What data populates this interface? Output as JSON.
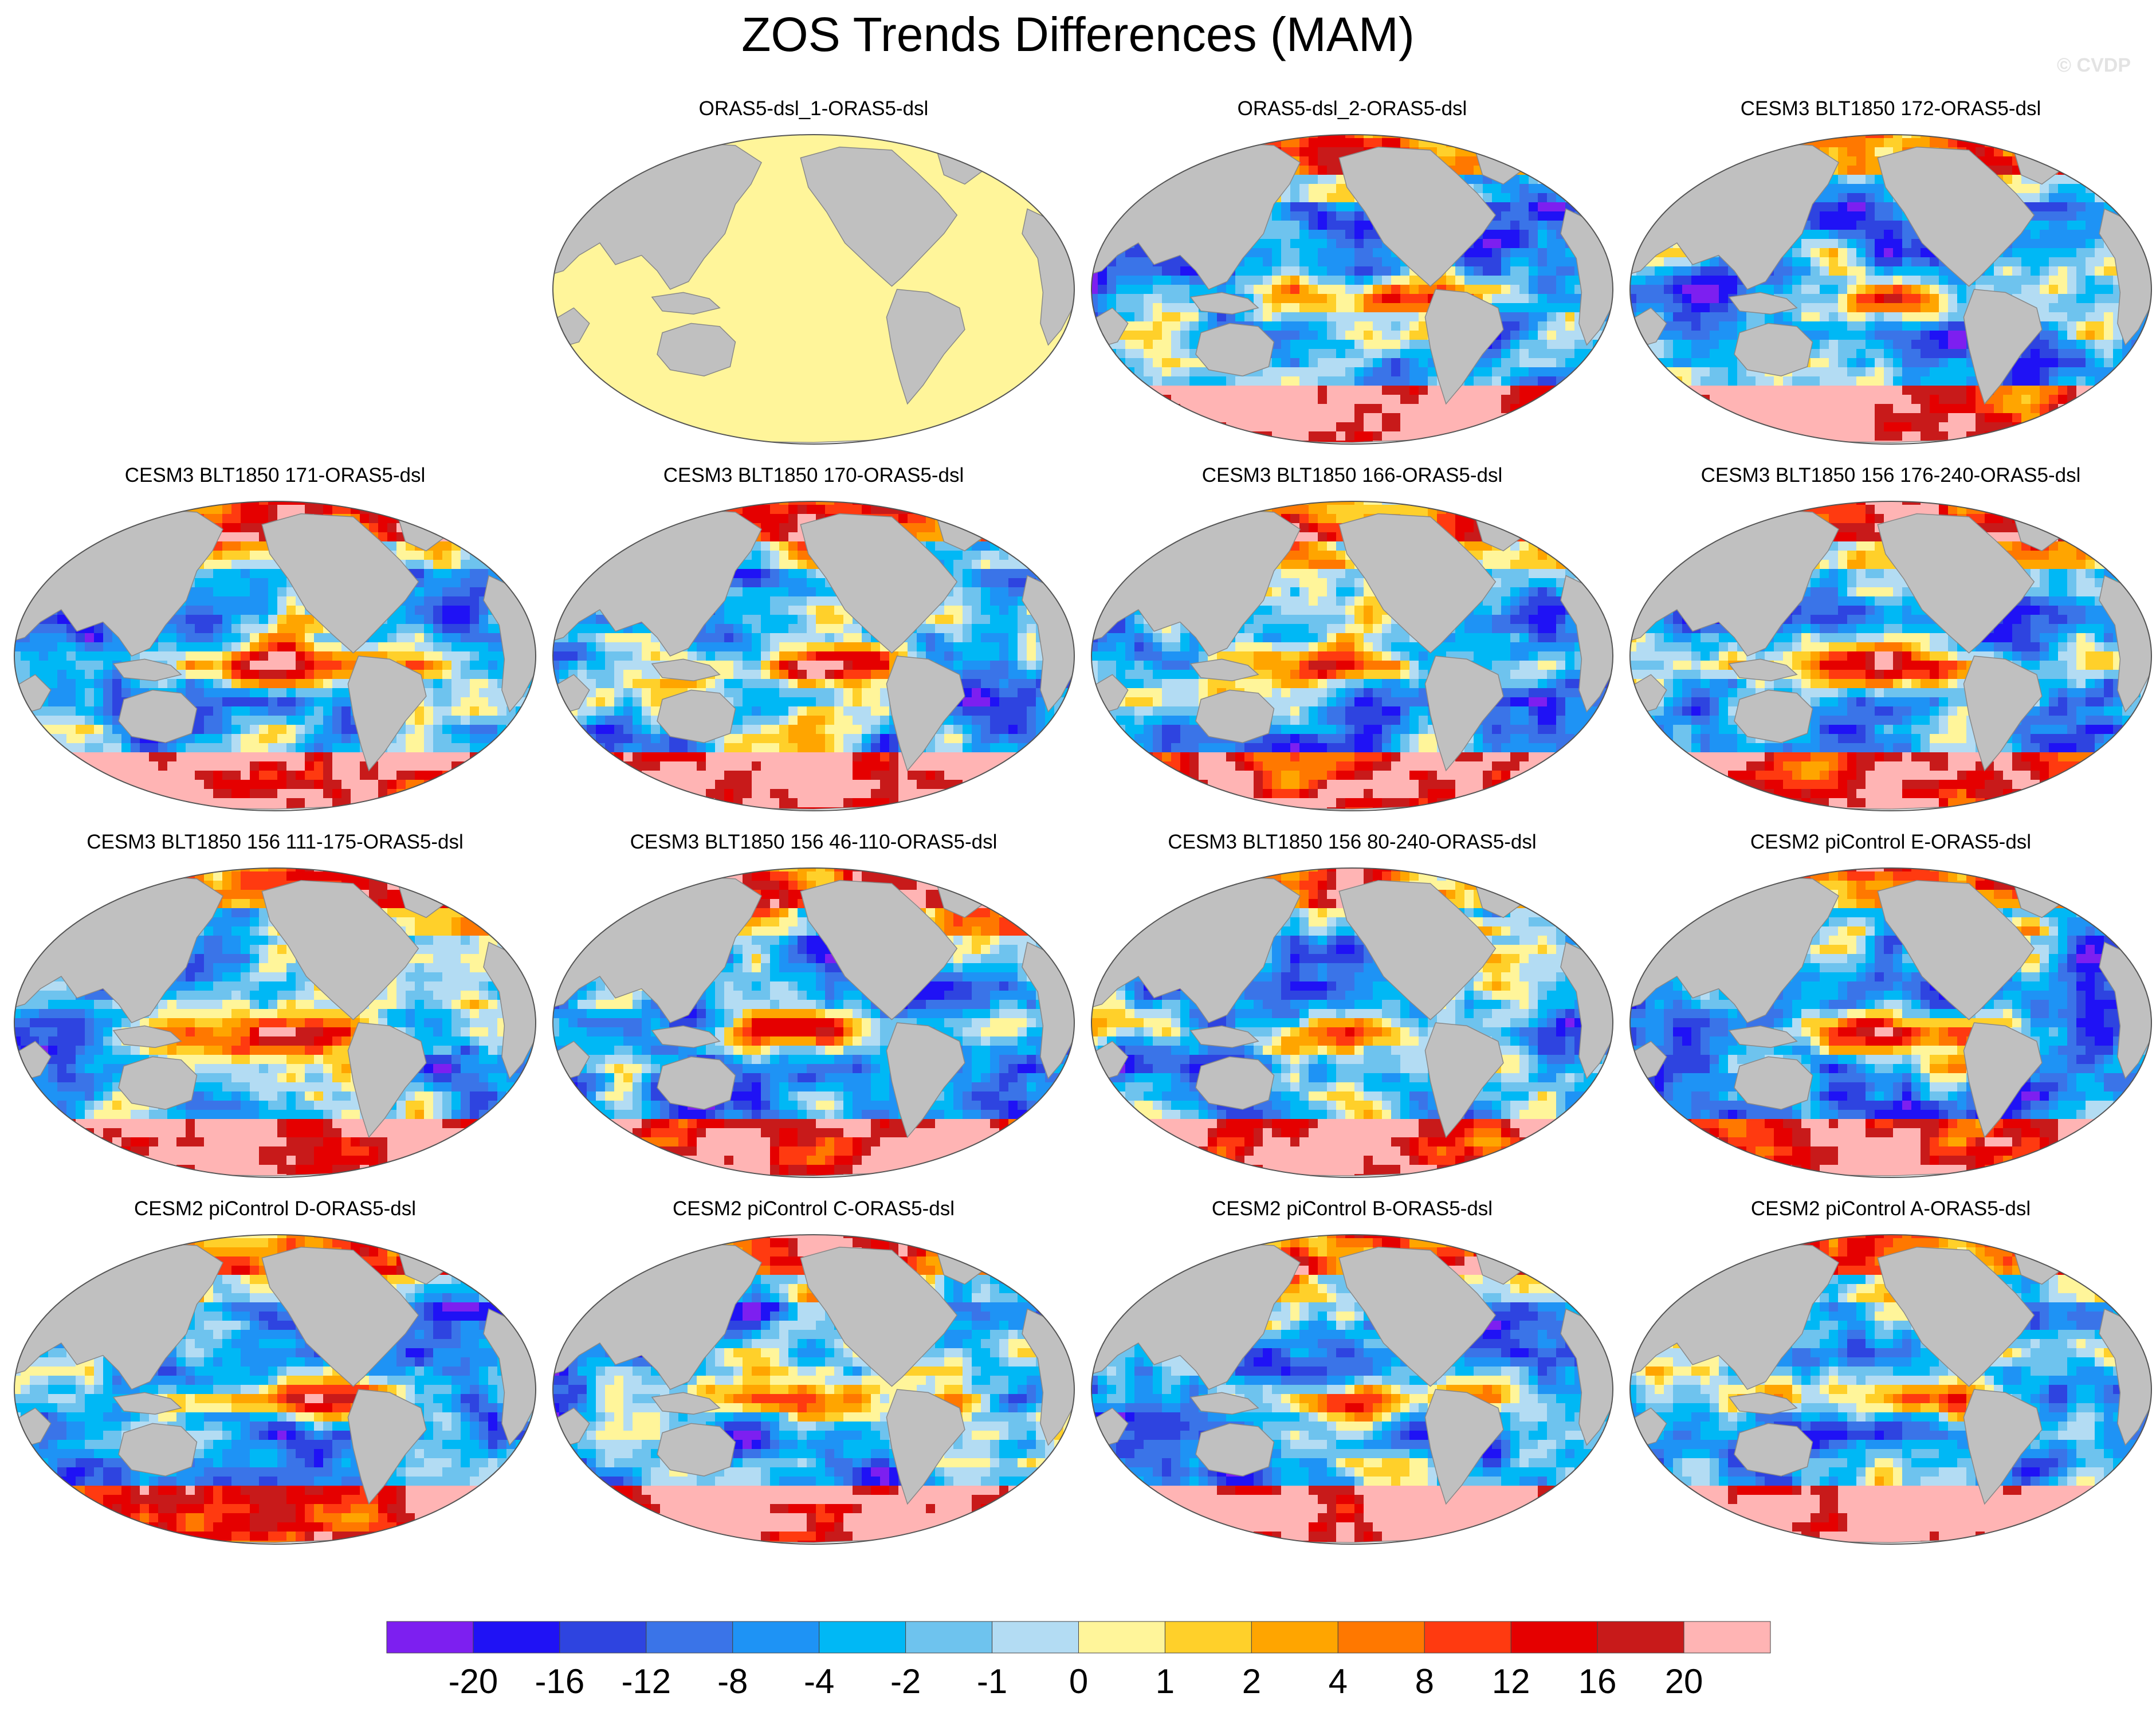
{
  "title": "ZOS Trends Differences (MAM)",
  "watermark": "© CVDP",
  "panels": [
    {
      "title": "ORAS5-dsl_1-ORAS5-dsl",
      "pattern": "uniform"
    },
    {
      "title": "ORAS5-dsl_2-ORAS5-dsl",
      "pattern": "anomaly"
    },
    {
      "title": "CESM3 BLT1850 172-ORAS5-dsl",
      "pattern": "anomaly"
    },
    {
      "title": "CESM3 BLT1850 171-ORAS5-dsl",
      "pattern": "anomaly"
    },
    {
      "title": "CESM3 BLT1850 170-ORAS5-dsl",
      "pattern": "anomaly"
    },
    {
      "title": "CESM3 BLT1850 166-ORAS5-dsl",
      "pattern": "anomaly"
    },
    {
      "title": "CESM3 BLT1850 156 176-240-ORAS5-dsl",
      "pattern": "anomaly"
    },
    {
      "title": "CESM3 BLT1850 156 111-175-ORAS5-dsl",
      "pattern": "anomaly"
    },
    {
      "title": "CESM3 BLT1850 156 46-110-ORAS5-dsl",
      "pattern": "anomaly"
    },
    {
      "title": "CESM3 BLT1850 156 80-240-ORAS5-dsl",
      "pattern": "anomaly"
    },
    {
      "title": "CESM2 piControl E-ORAS5-dsl",
      "pattern": "anomaly"
    },
    {
      "title": "CESM2 piControl D-ORAS5-dsl",
      "pattern": "anomaly"
    },
    {
      "title": "CESM2 piControl C-ORAS5-dsl",
      "pattern": "anomaly"
    },
    {
      "title": "CESM2 piControl B-ORAS5-dsl",
      "pattern": "anomaly"
    },
    {
      "title": "CESM2 piControl A-ORAS5-dsl",
      "pattern": "anomaly"
    }
  ],
  "colorbar": {
    "colors": [
      "#7d1ff0",
      "#1f12f5",
      "#2e44e0",
      "#3a74e8",
      "#1e93f5",
      "#00b8f5",
      "#6ec3ee",
      "#b3dcf3",
      "#fff59a",
      "#ffd02a",
      "#ffa500",
      "#ff7800",
      "#ff3a10",
      "#e50000",
      "#c81a1a",
      "#ffb4b4"
    ],
    "labels": [
      "-20",
      "-16",
      "-12",
      "-8",
      "-4",
      "-2",
      "-1",
      "0",
      "1",
      "2",
      "4",
      "8",
      "12",
      "16",
      "20"
    ]
  },
  "land_color": "#c0c0c0",
  "uniform_color": "#fff59a"
}
